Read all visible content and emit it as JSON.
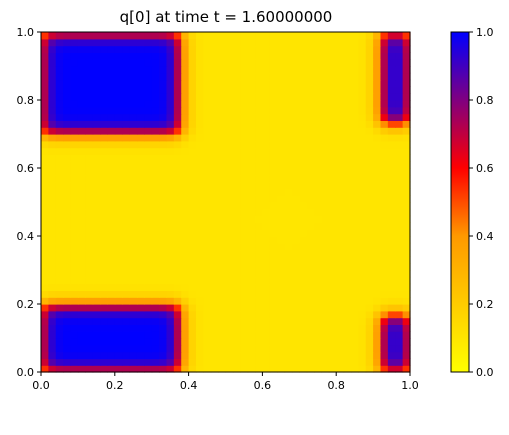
{
  "chart_data": {
    "type": "heatmap",
    "title": "q[0] at time t =     1.60000000",
    "xlabel": "",
    "ylabel": "",
    "xlim": [
      0.0,
      1.0
    ],
    "ylim": [
      0.0,
      1.0
    ],
    "grid_cells": 50,
    "x_ticks": [
      "0.0",
      "0.2",
      "0.4",
      "0.6",
      "0.8",
      "1.0"
    ],
    "y_ticks": [
      "0.0",
      "0.2",
      "0.4",
      "0.6",
      "0.8",
      "1.0"
    ],
    "colorbar": {
      "range": [
        0.0,
        1.0
      ],
      "ticks": [
        "0.0",
        "0.2",
        "0.4",
        "0.6",
        "0.8",
        "1.0"
      ],
      "colors": [
        "#ffff00",
        "#ffcc00",
        "#ff9900",
        "#ff0000",
        "#800080",
        "#0000ff"
      ]
    },
    "field": {
      "description": "blue (1.0) squares in the four corners, yellow (~0.1) cross elsewhere",
      "background_value": 0.1,
      "blocks": [
        {
          "corner": "top-left",
          "x": [
            0.0,
            0.38
          ],
          "y": [
            0.7,
            1.0
          ],
          "value": 1.0
        },
        {
          "corner": "top-right",
          "x": [
            0.92,
            1.0
          ],
          "y": [
            0.73,
            1.0
          ],
          "value": 1.0
        },
        {
          "corner": "bottom-left",
          "x": [
            0.0,
            0.38
          ],
          "y": [
            0.0,
            0.2
          ],
          "value": 1.0
        },
        {
          "corner": "bottom-right",
          "x": [
            0.92,
            1.0
          ],
          "y": [
            0.0,
            0.17
          ],
          "value": 1.0
        }
      ]
    }
  }
}
